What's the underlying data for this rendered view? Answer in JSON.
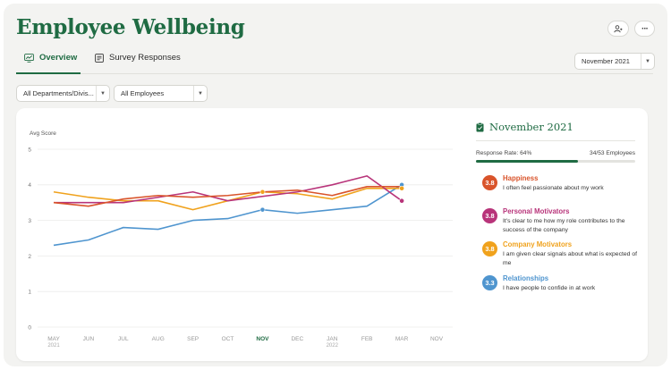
{
  "header": {
    "title": "Employee Wellbeing",
    "add_user_icon": "add-user-icon",
    "more_icon": "more-icon",
    "more_label": "···"
  },
  "tabs": [
    {
      "label": "Overview",
      "icon": "overview-icon",
      "active": true
    },
    {
      "label": "Survey Responses",
      "icon": "survey-icon",
      "active": false
    }
  ],
  "period_select": {
    "value": "November 2021"
  },
  "filters": {
    "department": "All Departments/Divis...",
    "employees": "All Employees"
  },
  "colors": {
    "brand": "#1f6b43",
    "happiness": "#d9542b",
    "personal": "#b8347a",
    "company": "#f0a21d",
    "relationships": "#4f95cf"
  },
  "chart_data": {
    "type": "line",
    "ylabel": "Avg Score",
    "ylim": [
      0,
      5
    ],
    "yticks": [
      "0",
      "1",
      "2",
      "3",
      "4",
      "5"
    ],
    "categories": [
      "MAY",
      "JUN",
      "JUL",
      "AUG",
      "SEP",
      "OCT",
      "NOV",
      "DEC",
      "JAN",
      "FEB",
      "MAR",
      "NOV"
    ],
    "subcategories": [
      "2021",
      "",
      "",
      "",
      "",
      "",
      "",
      "",
      "2022",
      "",
      "",
      ""
    ],
    "highlight_category": "NOV",
    "series": [
      {
        "name": "Happiness",
        "color": "#d9542b",
        "values": [
          3.5,
          3.4,
          3.6,
          3.7,
          3.65,
          3.7,
          3.8,
          3.85,
          3.7,
          3.95,
          3.95,
          null
        ]
      },
      {
        "name": "Personal Motivators",
        "color": "#b8347a",
        "values": [
          3.5,
          null,
          3.5,
          3.65,
          3.8,
          3.55,
          null,
          3.8,
          4.0,
          4.25,
          3.55,
          null
        ]
      },
      {
        "name": "Company Motivators",
        "color": "#f0a21d",
        "values": [
          3.8,
          3.65,
          3.55,
          3.55,
          3.3,
          3.55,
          3.8,
          3.75,
          3.6,
          3.9,
          3.9,
          null
        ]
      },
      {
        "name": "Relationships",
        "color": "#4f95cf",
        "values": [
          2.3,
          2.45,
          2.8,
          2.75,
          3.0,
          3.05,
          3.3,
          3.2,
          3.3,
          3.4,
          4.0,
          null
        ]
      }
    ],
    "markers": [
      {
        "series": "Company Motivators",
        "index": 6,
        "value": 3.8
      },
      {
        "series": "Relationships",
        "index": 6,
        "value": 3.3
      },
      {
        "series": "Relationships",
        "index": 10,
        "value": 4.0
      },
      {
        "series": "Personal Motivators",
        "index": 10,
        "value": 3.55
      },
      {
        "series": "Company Motivators",
        "index": 10,
        "value": 3.9
      }
    ]
  },
  "summary": {
    "title": "November 2021",
    "icon": "clipboard-check-icon",
    "response_rate_label": "Response Rate: 64%",
    "employees_label": "34/53 Employees",
    "response_rate": 0.64,
    "metrics": [
      {
        "score": "3.8",
        "title": "Happiness",
        "text": "I often feel passionate about my work",
        "color": "#d9542b"
      },
      {
        "score": "3.8",
        "title": "Personal Motivators",
        "text": "It's clear to me how my role contributes to the success of the company",
        "color": "#b8347a"
      },
      {
        "score": "3.8",
        "title": "Company Motivators",
        "text": "I am given clear signals about what is expected of me",
        "color": "#f0a21d"
      },
      {
        "score": "3.3",
        "title": "Relationships",
        "text": "I have people to confide in at work",
        "color": "#4f95cf"
      }
    ]
  }
}
